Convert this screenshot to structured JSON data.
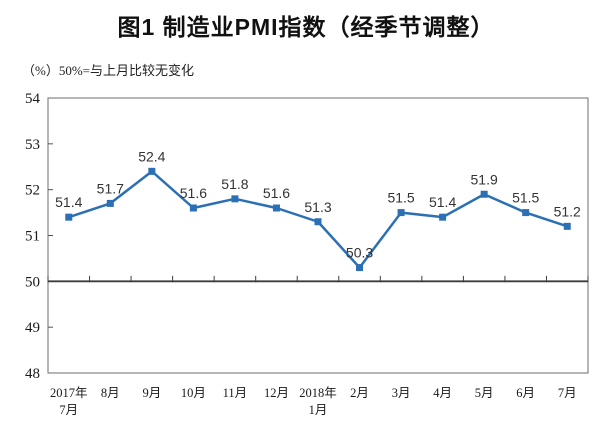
{
  "title": "图1 制造业PMI指数（经季节调整）",
  "axis_note": "（%）50%=与上月比较无变化",
  "chart_data": {
    "type": "line",
    "series_name": "制造业PMI指数",
    "categories": [
      [
        "2017年",
        "7月"
      ],
      [
        "8月"
      ],
      [
        "9月"
      ],
      [
        "10月"
      ],
      [
        "11月"
      ],
      [
        "12月"
      ],
      [
        "2018年",
        "1月"
      ],
      [
        "2月"
      ],
      [
        "3月"
      ],
      [
        "4月"
      ],
      [
        "5月"
      ],
      [
        "6月"
      ],
      [
        "7月"
      ]
    ],
    "values": [
      51.4,
      51.7,
      52.4,
      51.6,
      51.8,
      51.6,
      51.3,
      50.3,
      51.5,
      51.4,
      51.9,
      51.5,
      51.2
    ],
    "title": "图1 制造业PMI指数（经季节调整）",
    "ylabel": "（%）50%=与上月比较无变化",
    "ylim": [
      48,
      54
    ],
    "yticks": [
      48,
      49,
      50,
      51,
      52,
      53,
      54
    ],
    "reference_line": 50,
    "grid": false,
    "legend": "none",
    "data_labels": true,
    "line_color": "#2b6fb4",
    "marker": "square",
    "label_color": "#333333"
  }
}
